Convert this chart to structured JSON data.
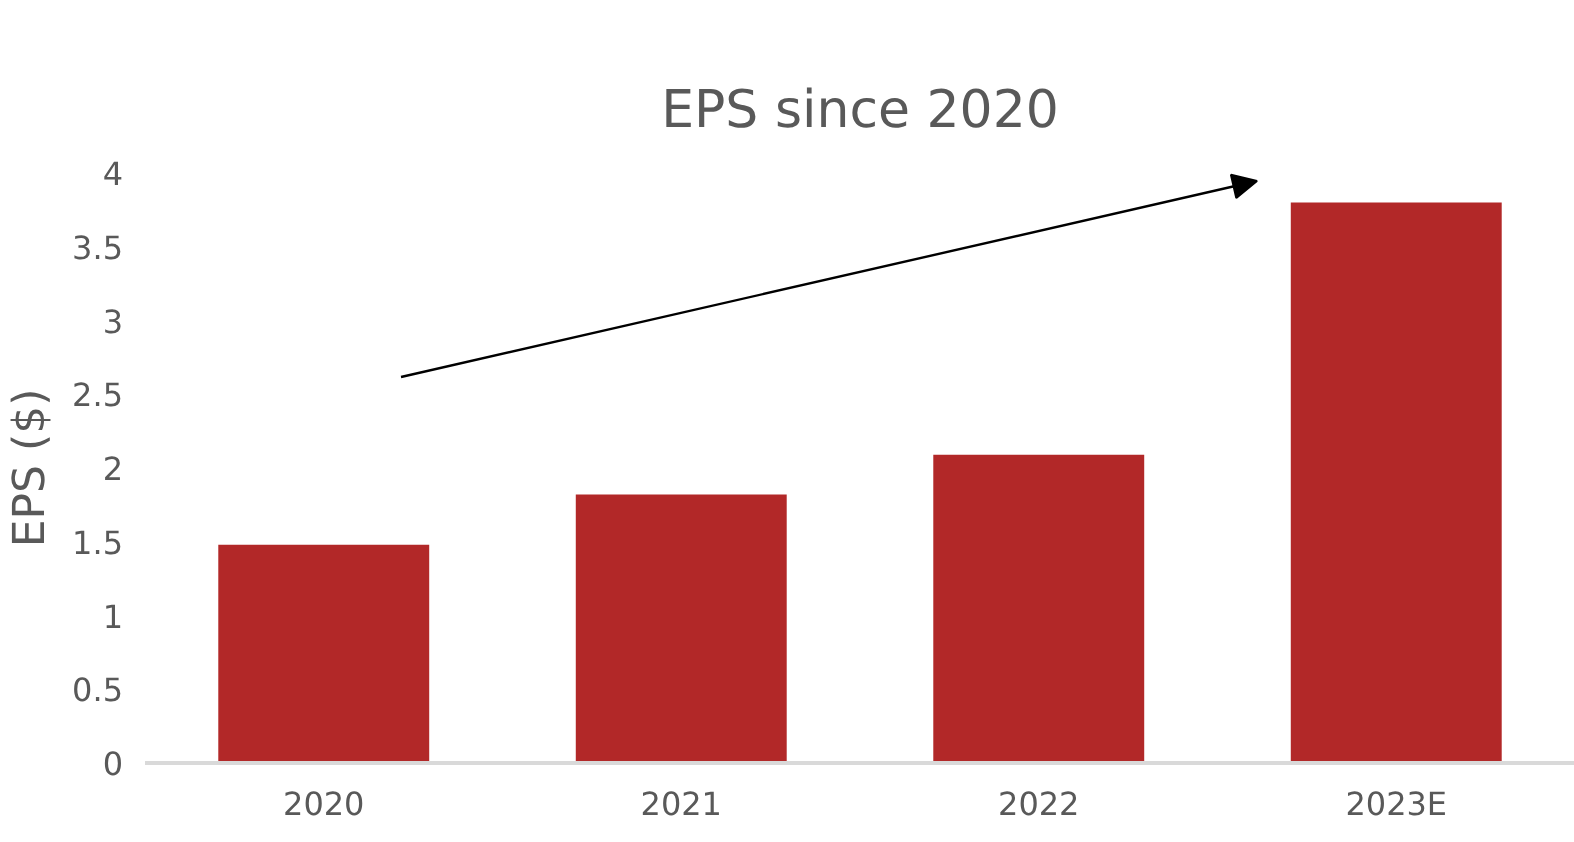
{
  "chart_data": {
    "type": "bar",
    "title": "EPS since 2020",
    "ylabel": "EPS ($)",
    "categories": [
      "2020",
      "2021",
      "2022",
      "2023E"
    ],
    "values": [
      1.48,
      1.82,
      2.09,
      3.8
    ],
    "color": "#b22828",
    "ylim": [
      0,
      4
    ],
    "yticks": [
      0,
      0.5,
      1,
      1.5,
      2,
      2.5,
      3,
      3.5,
      4
    ]
  }
}
